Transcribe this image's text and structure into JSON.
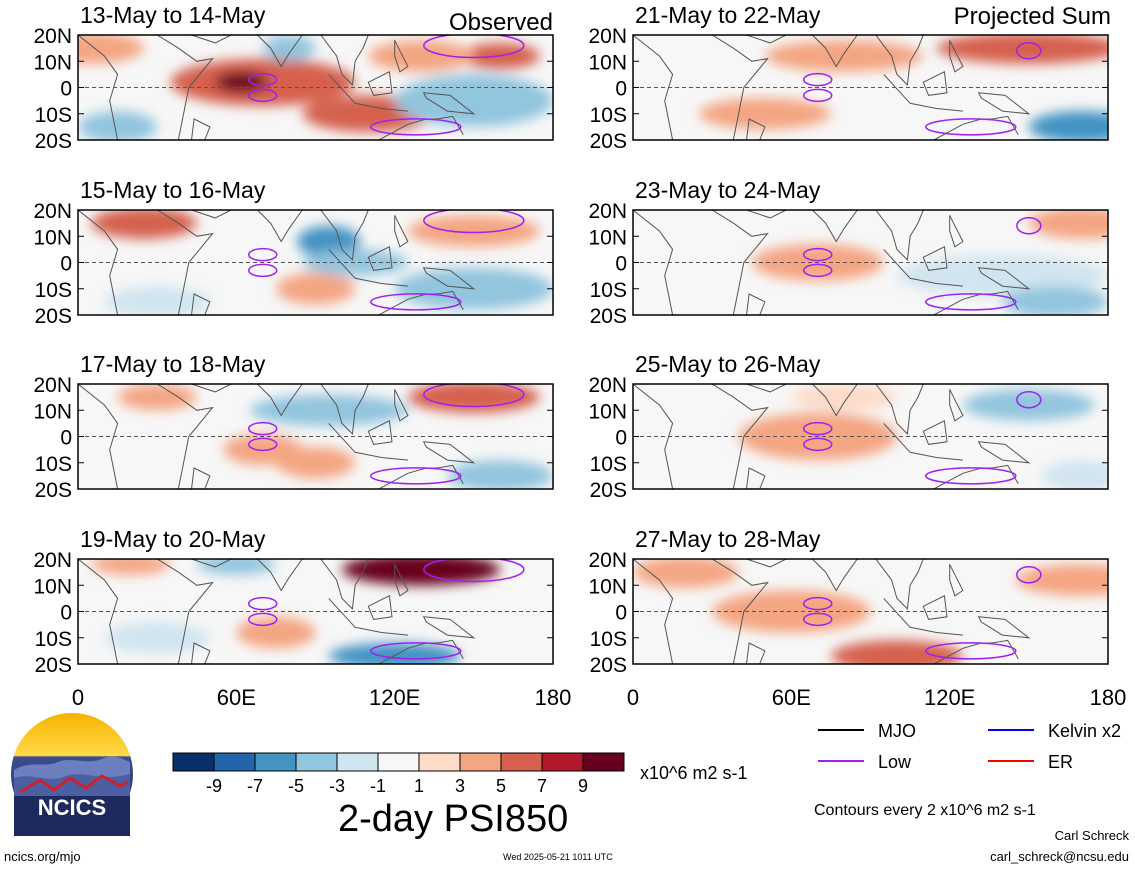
{
  "header": {
    "left_tag": "Observed",
    "right_tag": "Projected Sum"
  },
  "chart_data": [
    {
      "type": "heatmap",
      "title": "13-May to 14-May",
      "panel": "observed",
      "x_ticks": [
        "0",
        "60E",
        "120E",
        "180"
      ],
      "y_ticks": [
        "20N",
        "10N",
        "0",
        "10S",
        "20S"
      ],
      "xlim": [
        0,
        180
      ],
      "ylim": [
        -20,
        20
      ],
      "units": "x10^6 m2 s-1"
    },
    {
      "type": "heatmap",
      "title": "15-May to 16-May",
      "panel": "observed",
      "x_ticks": [
        "0",
        "60E",
        "120E",
        "180"
      ],
      "y_ticks": [
        "20N",
        "10N",
        "0",
        "10S",
        "20S"
      ],
      "xlim": [
        0,
        180
      ],
      "ylim": [
        -20,
        20
      ],
      "units": "x10^6 m2 s-1"
    },
    {
      "type": "heatmap",
      "title": "17-May to 18-May",
      "panel": "observed",
      "x_ticks": [
        "0",
        "60E",
        "120E",
        "180"
      ],
      "y_ticks": [
        "20N",
        "10N",
        "0",
        "10S",
        "20S"
      ],
      "xlim": [
        0,
        180
      ],
      "ylim": [
        -20,
        20
      ],
      "units": "x10^6 m2 s-1"
    },
    {
      "type": "heatmap",
      "title": "19-May to 20-May",
      "panel": "observed",
      "x_ticks": [
        "0",
        "60E",
        "120E",
        "180"
      ],
      "y_ticks": [
        "20N",
        "10N",
        "0",
        "10S",
        "20S"
      ],
      "xlim": [
        0,
        180
      ],
      "ylim": [
        -20,
        20
      ],
      "units": "x10^6 m2 s-1"
    },
    {
      "type": "heatmap",
      "title": "21-May to 22-May",
      "panel": "projected",
      "x_ticks": [
        "0",
        "60E",
        "120E",
        "180"
      ],
      "y_ticks": [
        "20N",
        "10N",
        "0",
        "10S",
        "20S"
      ],
      "xlim": [
        0,
        180
      ],
      "ylim": [
        -20,
        20
      ],
      "units": "x10^6 m2 s-1"
    },
    {
      "type": "heatmap",
      "title": "23-May to 24-May",
      "panel": "projected",
      "x_ticks": [
        "0",
        "60E",
        "120E",
        "180"
      ],
      "y_ticks": [
        "20N",
        "10N",
        "0",
        "10S",
        "20S"
      ],
      "xlim": [
        0,
        180
      ],
      "ylim": [
        -20,
        20
      ],
      "units": "x10^6 m2 s-1"
    },
    {
      "type": "heatmap",
      "title": "25-May to 26-May",
      "panel": "projected",
      "x_ticks": [
        "0",
        "60E",
        "120E",
        "180"
      ],
      "y_ticks": [
        "20N",
        "10N",
        "0",
        "10S",
        "20S"
      ],
      "xlim": [
        0,
        180
      ],
      "ylim": [
        -20,
        20
      ],
      "units": "x10^6 m2 s-1"
    },
    {
      "type": "heatmap",
      "title": "27-May to 28-May",
      "panel": "projected",
      "x_ticks": [
        "0",
        "60E",
        "120E",
        "180"
      ],
      "y_ticks": [
        "20N",
        "10N",
        "0",
        "10S",
        "20S"
      ],
      "xlim": [
        0,
        180
      ],
      "ylim": [
        -20,
        20
      ],
      "units": "x10^6 m2 s-1"
    }
  ],
  "colorbar": {
    "labels": [
      "-9",
      "-7",
      "-5",
      "-3",
      "-1",
      "1",
      "3",
      "5",
      "7",
      "9"
    ],
    "colors": [
      "#08306b",
      "#2166ac",
      "#4393c3",
      "#92c5de",
      "#d1e5f0",
      "#f7f7f7",
      "#fddbc7",
      "#f4a582",
      "#d6604d",
      "#b2182b",
      "#67001f"
    ],
    "units": "x10^6 m2 s-1"
  },
  "legend": [
    {
      "label": "MJO",
      "color": "#000000"
    },
    {
      "label": "Kelvin x2",
      "color": "#0000ff"
    },
    {
      "label": "Low",
      "color": "#a020f0"
    },
    {
      "label": "ER",
      "color": "#ff0000"
    }
  ],
  "main_title": "2-day PSI850",
  "contour_note": "Contours every 2 x10^6 m2 s-1",
  "logo_text": "NCICS",
  "footer": {
    "url": "ncics.org/mjo",
    "timestamp": "Wed 2025-05-21 1011 UTC",
    "author": "Carl Schreck",
    "email": "carl_schreck@ncsu.edu"
  }
}
